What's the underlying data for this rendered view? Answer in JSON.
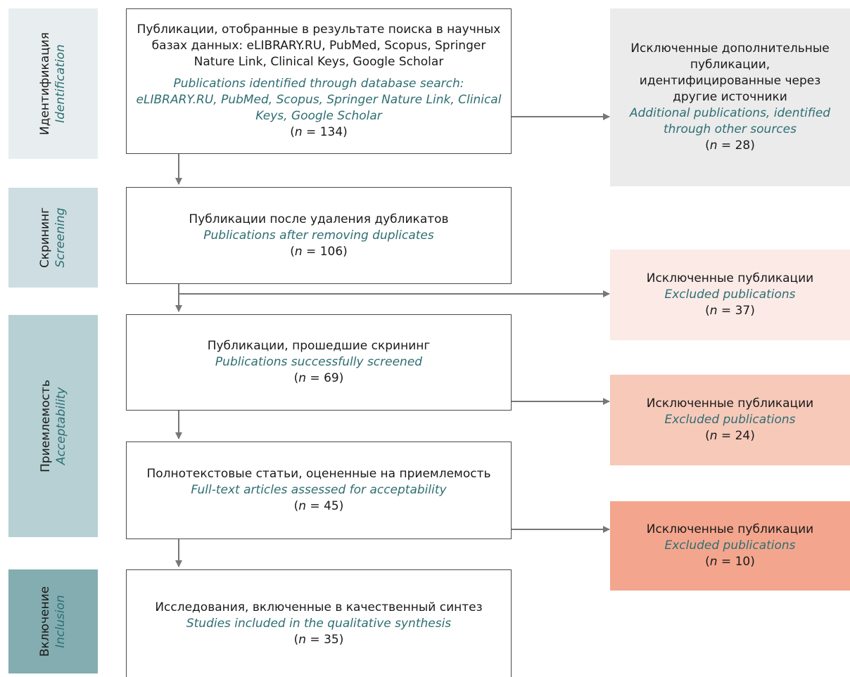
{
  "stages": {
    "identification": {
      "ru": "Идентификация",
      "en": "Identification",
      "color": "#e8eeef"
    },
    "screening": {
      "ru": "Скрининг",
      "en": "Screening",
      "color": "#cddde2"
    },
    "acceptability": {
      "ru": "Приемлемость",
      "en": "Acceptability",
      "color": "#b6d0d4"
    },
    "inclusion": {
      "ru": "Включение",
      "en": "Inclusion",
      "color": "#83adb1"
    }
  },
  "boxes": {
    "database_search": {
      "ru": "Публикации, отобранные в результате поиска в научных базах данных: eLIBRARY.RU, PubMed, Scopus, Springer Nature Link, Clinical Keys, Google Scholar",
      "en": "Publications identified through database search: eLIBRARY.RU, PubMed, Scopus, Springer Nature Link, Clinical Keys, Google Scholar",
      "n": "134"
    },
    "after_duplicates": {
      "ru": "Публикации после удаления дубликатов",
      "en": "Publications after removing duplicates",
      "n": "106"
    },
    "screened": {
      "ru": "Публикации, прошедшие скрининг",
      "en": "Publications successfully screened",
      "n": "69"
    },
    "full_text": {
      "ru": "Полнотекстовые статьи, оцененные на приемлемость",
      "en": "Full-text articles assessed for acceptability",
      "n": "45"
    },
    "included": {
      "ru": "Исследования, включенные в качественный синтез",
      "en": "Studies included in the qualitative synthesis",
      "n": "35"
    }
  },
  "side_boxes": {
    "other_sources": {
      "ru": "Исключенные дополнительные публикации, идентифицированные через другие источники",
      "en": "Additional publications, identified through other sources",
      "n": "28",
      "color": "#ebebeb"
    },
    "excluded_1": {
      "ru": "Исключенные публикации",
      "en": "Excluded publications",
      "n": "37",
      "color": "#fbeae6"
    },
    "excluded_2": {
      "ru": "Исключенные публикации",
      "en": "Excluded publications",
      "n": "24",
      "color": "#f7c9b9"
    },
    "excluded_3": {
      "ru": "Исключенные публикации",
      "en": "Excluded publications",
      "n": "10",
      "color": "#f3a68d"
    }
  },
  "n_label": "n",
  "n_prefix": "(",
  "n_eq": " = ",
  "n_suffix": ")",
  "colors": {
    "border": "#4a4a4a",
    "arrow": "#777777",
    "english_text": "#2e6e73"
  }
}
